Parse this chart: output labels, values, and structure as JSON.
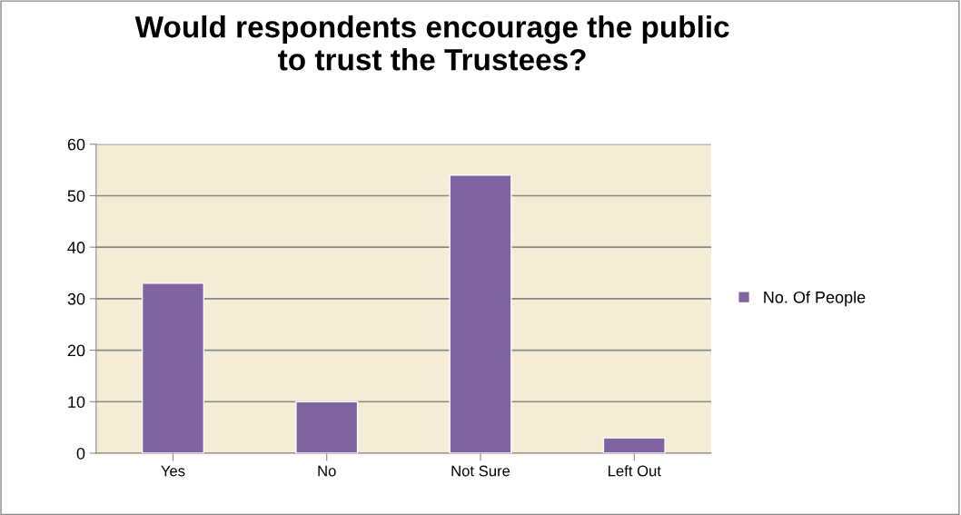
{
  "chart_data": {
    "type": "bar",
    "title": "Would respondents encourage the public\nto trust the Trustees?",
    "categories": [
      "Yes",
      "No",
      "Not Sure",
      "Left Out"
    ],
    "series": [
      {
        "name": "No. Of People",
        "color": "#8064a2",
        "values": [
          33,
          10,
          54,
          3
        ]
      }
    ],
    "ylim": [
      0,
      60
    ],
    "yticks": [
      0,
      10,
      20,
      30,
      40,
      50,
      60
    ],
    "grid": "y",
    "legend": "right"
  }
}
